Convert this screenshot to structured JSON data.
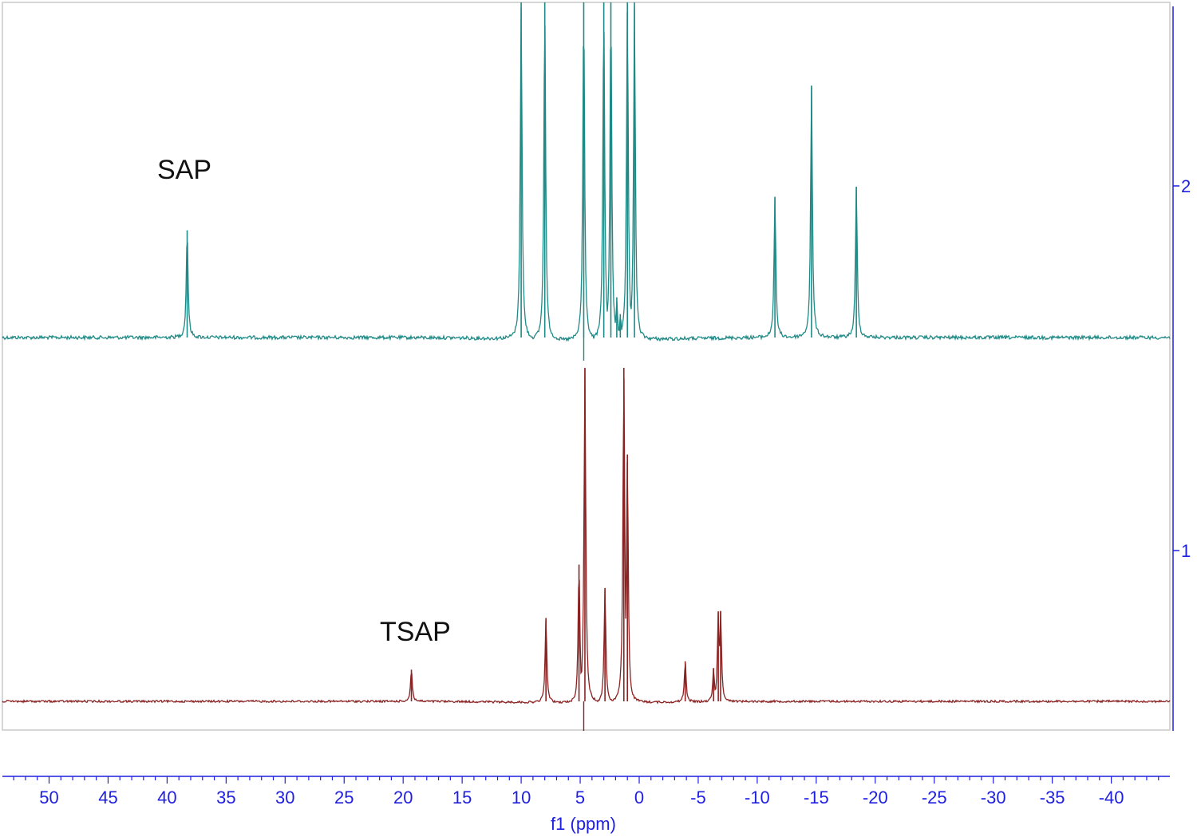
{
  "chart_data": {
    "type": "line",
    "xlabel": "f1 (ppm)",
    "xlim": [
      55,
      -44
    ],
    "x_reversed": true,
    "x_ticks": [
      50,
      45,
      40,
      35,
      30,
      25,
      20,
      15,
      10,
      5,
      0,
      -5,
      -10,
      -15,
      -20,
      -25,
      -30,
      -35,
      -40
    ],
    "stack_labels": [
      "2",
      "1"
    ],
    "colors": {
      "SAP": "#1f8a86",
      "TSAP": "#8b2323",
      "axis": "#1f1fe0",
      "frame": "#c8c8c8"
    },
    "series": [
      {
        "name": "SAP",
        "stack_index": 2,
        "peaks": [
          {
            "ppm": 38.3,
            "height": 0.32
          },
          {
            "ppm": 10.0,
            "height": 1.0
          },
          {
            "ppm": 8.0,
            "height": 1.0
          },
          {
            "ppm": 4.7,
            "height": 1.0
          },
          {
            "ppm": 3.0,
            "height": 1.0
          },
          {
            "ppm": 2.4,
            "height": 1.0
          },
          {
            "ppm": 1.9,
            "height": 0.12
          },
          {
            "ppm": 1.6,
            "height": 0.07
          },
          {
            "ppm": 1.0,
            "height": 1.0
          },
          {
            "ppm": 0.4,
            "height": 1.0
          },
          {
            "ppm": -11.5,
            "height": 0.42
          },
          {
            "ppm": -14.6,
            "height": 0.75
          },
          {
            "ppm": -18.4,
            "height": 0.45
          }
        ]
      },
      {
        "name": "TSAP",
        "stack_index": 1,
        "peaks": [
          {
            "ppm": 19.3,
            "height": 0.095
          },
          {
            "ppm": 7.9,
            "height": 0.25
          },
          {
            "ppm": 5.1,
            "height": 0.41
          },
          {
            "ppm": 4.6,
            "height": 1.0
          },
          {
            "ppm": 2.9,
            "height": 0.34
          },
          {
            "ppm": 1.3,
            "height": 1.0
          },
          {
            "ppm": 1.0,
            "height": 0.74
          },
          {
            "ppm": -3.9,
            "height": 0.12
          },
          {
            "ppm": -6.3,
            "height": 0.1
          },
          {
            "ppm": -6.7,
            "height": 0.27
          },
          {
            "ppm": -6.9,
            "height": 0.27
          }
        ]
      }
    ]
  }
}
